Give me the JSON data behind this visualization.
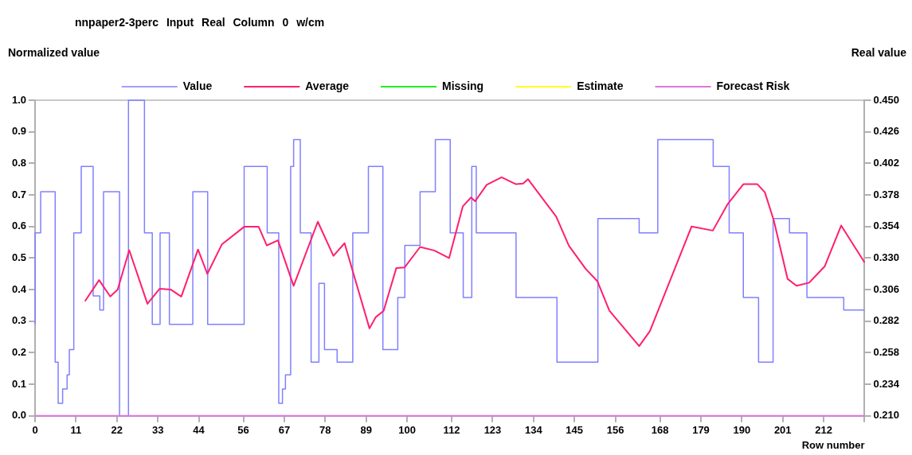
{
  "chart_data": {
    "type": "line",
    "title": "nnpaper2-3perc Input Real Column 0 w/cm",
    "ylabel": "Normalized value",
    "y2label": "Real value",
    "xlabel": "Row number",
    "xlim": [
      0,
      223
    ],
    "xticks": [
      0,
      11,
      22,
      33,
      44,
      56,
      67,
      78,
      89,
      100,
      112,
      123,
      134,
      145,
      156,
      168,
      179,
      190,
      201,
      212,
      {
        "value": 223,
        "label": null
      }
    ],
    "ylim": [
      0,
      1
    ],
    "yticks": [
      {
        "value": 0,
        "label": "0.0"
      },
      0.1,
      0.2,
      0.3,
      0.4,
      0.5,
      0.6,
      0.7,
      0.8,
      0.9,
      {
        "value": 1,
        "label": "1.0"
      }
    ],
    "y2lim": [
      0.21,
      0.45
    ],
    "y2ticks": [
      {
        "value": 0.21,
        "label": "0.210"
      },
      0.234,
      0.258,
      0.282,
      0.306,
      {
        "value": 0.33,
        "label": "0.330"
      },
      0.354,
      0.378,
      0.402,
      0.426,
      {
        "value": 0.45,
        "label": "0.450"
      }
    ],
    "grid": false,
    "legend": "top",
    "marker": "none",
    "series": [
      {
        "name": "Value",
        "type": "step",
        "color": "#8080ff",
        "x": [
          0,
          1.5,
          5.4,
          6.2,
          7.4,
          8.6,
          9.2,
          10.4,
          12.4,
          15.6,
          17.4,
          18.4,
          22.7,
          25.1,
          29.4,
          31.5,
          33.6,
          36.1,
          42.4,
          46.4,
          56.2,
          62.4,
          65.5,
          66.5,
          67.3,
          68.7,
          69.5,
          71.3,
          74.2,
          76.3,
          77.8,
          81.2,
          85.4,
          89.6,
          93.5,
          97.5,
          99.4,
          103.5,
          107.6,
          111.6,
          115.1,
          117.4,
          118.6,
          129.3,
          140.3,
          151.3,
          162.4,
          167.4,
          182.3,
          186.6,
          190.4,
          194.5,
          198.4,
          202.8,
          207.5,
          217.4,
          219.3,
          223
        ],
        "values": [
          0.29,
          0.58,
          0.71,
          0.17,
          0.04,
          0.085,
          0.13,
          0.21,
          0.58,
          0.79,
          0.38,
          0.335,
          0.71,
          0,
          1,
          0.58,
          0.29,
          0.58,
          0.29,
          0.71,
          0.29,
          0.79,
          0.58,
          0.04,
          0.085,
          0.13,
          0.79,
          0.875,
          0.58,
          0.17,
          0.42,
          0.21,
          0.17,
          0.58,
          0.79,
          0.21,
          0.375,
          0.54,
          0.71,
          0.875,
          0.58,
          0.375,
          0.79,
          0.58,
          0.375,
          0.17,
          0.625,
          0.58,
          0.875,
          0.79,
          0.58,
          0.375,
          0.17,
          0.625,
          0.58,
          0.375,
          0.335,
          0.335
        ]
      },
      {
        "name": "Average",
        "color": "#ff1f6e",
        "x": [
          13.4,
          17.2,
          20.2,
          22.2,
          25.3,
          30.2,
          33.5,
          36.5,
          39.3,
          43.8,
          46.3,
          50.2,
          56.2,
          60.1,
          62.3,
          65.3,
          69.5,
          76,
          80.2,
          83.2,
          89.9,
          91.6,
          93.7,
          97.1,
          99.3,
          103.5,
          107.3,
          111.3,
          115,
          117.2,
          118.3,
          121.4,
          125.4,
          129.3,
          131.2,
          132.5,
          140.1,
          143.5,
          148,
          151.2,
          154.4,
          162.4,
          165.3,
          176.5,
          182.2,
          186.2,
          190.4,
          194.2,
          196.2,
          198.6,
          202.3,
          204.7,
          208.1,
          212.3,
          216.7,
          223
        ],
        "values": [
          0.363,
          0.43,
          0.378,
          0.4,
          0.525,
          0.355,
          0.403,
          0.4,
          0.378,
          0.527,
          0.45,
          0.543,
          0.599,
          0.599,
          0.54,
          0.556,
          0.412,
          0.615,
          0.507,
          0.547,
          0.277,
          0.313,
          0.333,
          0.468,
          0.47,
          0.535,
          0.524,
          0.5,
          0.664,
          0.692,
          0.68,
          0.732,
          0.756,
          0.734,
          0.736,
          0.75,
          0.631,
          0.539,
          0.466,
          0.426,
          0.333,
          0.221,
          0.269,
          0.6,
          0.587,
          0.671,
          0.734,
          0.734,
          0.708,
          0.619,
          0.434,
          0.412,
          0.422,
          0.474,
          0.603,
          0.486
        ]
      },
      {
        "name": "Missing",
        "color": "#22ee22"
      },
      {
        "name": "Estimate",
        "color": "#ffff22"
      },
      {
        "name": "Forecast Risk",
        "color": "#dd77dd",
        "x": [
          0,
          223
        ],
        "values": [
          0,
          0
        ]
      }
    ]
  }
}
